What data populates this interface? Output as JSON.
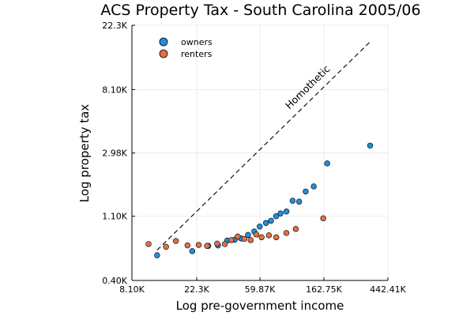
{
  "chart_data": {
    "type": "scatter",
    "title": "ACS Property Tax - South Carolina 2005/06",
    "xlabel": "Log pre-government income",
    "ylabel": "Log property tax",
    "x_scale": "log",
    "y_scale": "log",
    "xlim": [
      8100,
      442410
    ],
    "ylim": [
      400,
      22300
    ],
    "x_ticks": [
      {
        "value": 8100,
        "label": "8.10K"
      },
      {
        "value": 22300,
        "label": "22.3K"
      },
      {
        "value": 59870,
        "label": "59.87K"
      },
      {
        "value": 162750,
        "label": "162.75K"
      },
      {
        "value": 442410,
        "label": "442.41K"
      }
    ],
    "y_ticks": [
      {
        "value": 400,
        "label": "0.40K"
      },
      {
        "value": 1100,
        "label": "1.10K"
      },
      {
        "value": 2980,
        "label": "2.98K"
      },
      {
        "value": 8100,
        "label": "8.10K"
      },
      {
        "value": 22300,
        "label": "22.3K"
      }
    ],
    "grid": true,
    "legend_position": "top-left",
    "series": [
      {
        "name": "owners",
        "color": "#1f8fdb",
        "points": [
          [
            12000,
            595
          ],
          [
            20800,
            635
          ],
          [
            26700,
            690
          ],
          [
            31100,
            695
          ],
          [
            35900,
            750
          ],
          [
            40400,
            760
          ],
          [
            44700,
            775
          ],
          [
            49700,
            820
          ],
          [
            54800,
            865
          ],
          [
            59700,
            935
          ],
          [
            65800,
            990
          ],
          [
            71200,
            1025
          ],
          [
            77100,
            1100
          ],
          [
            82700,
            1150
          ],
          [
            90600,
            1185
          ],
          [
            99800,
            1405
          ],
          [
            110500,
            1385
          ],
          [
            122400,
            1625
          ],
          [
            138900,
            1760
          ],
          [
            171300,
            2530
          ],
          [
            335100,
            3350
          ]
        ]
      },
      {
        "name": "renters",
        "color": "#e26f46",
        "points": [
          [
            10500,
            710
          ],
          [
            13800,
            680
          ],
          [
            16100,
            745
          ],
          [
            19300,
            695
          ],
          [
            23000,
            700
          ],
          [
            26200,
            690
          ],
          [
            30700,
            715
          ],
          [
            34600,
            710
          ],
          [
            38300,
            755
          ],
          [
            42300,
            800
          ],
          [
            47000,
            770
          ],
          [
            51800,
            755
          ],
          [
            56600,
            825
          ],
          [
            61500,
            790
          ],
          [
            68900,
            815
          ],
          [
            77300,
            790
          ],
          [
            90500,
            845
          ],
          [
            104900,
            900
          ],
          [
            161100,
            1065
          ]
        ]
      }
    ],
    "reference_line": {
      "label": "Homothetic",
      "style": "dashed",
      "points": [
        [
          12000,
          645
        ],
        [
          335100,
          17200
        ]
      ]
    }
  }
}
